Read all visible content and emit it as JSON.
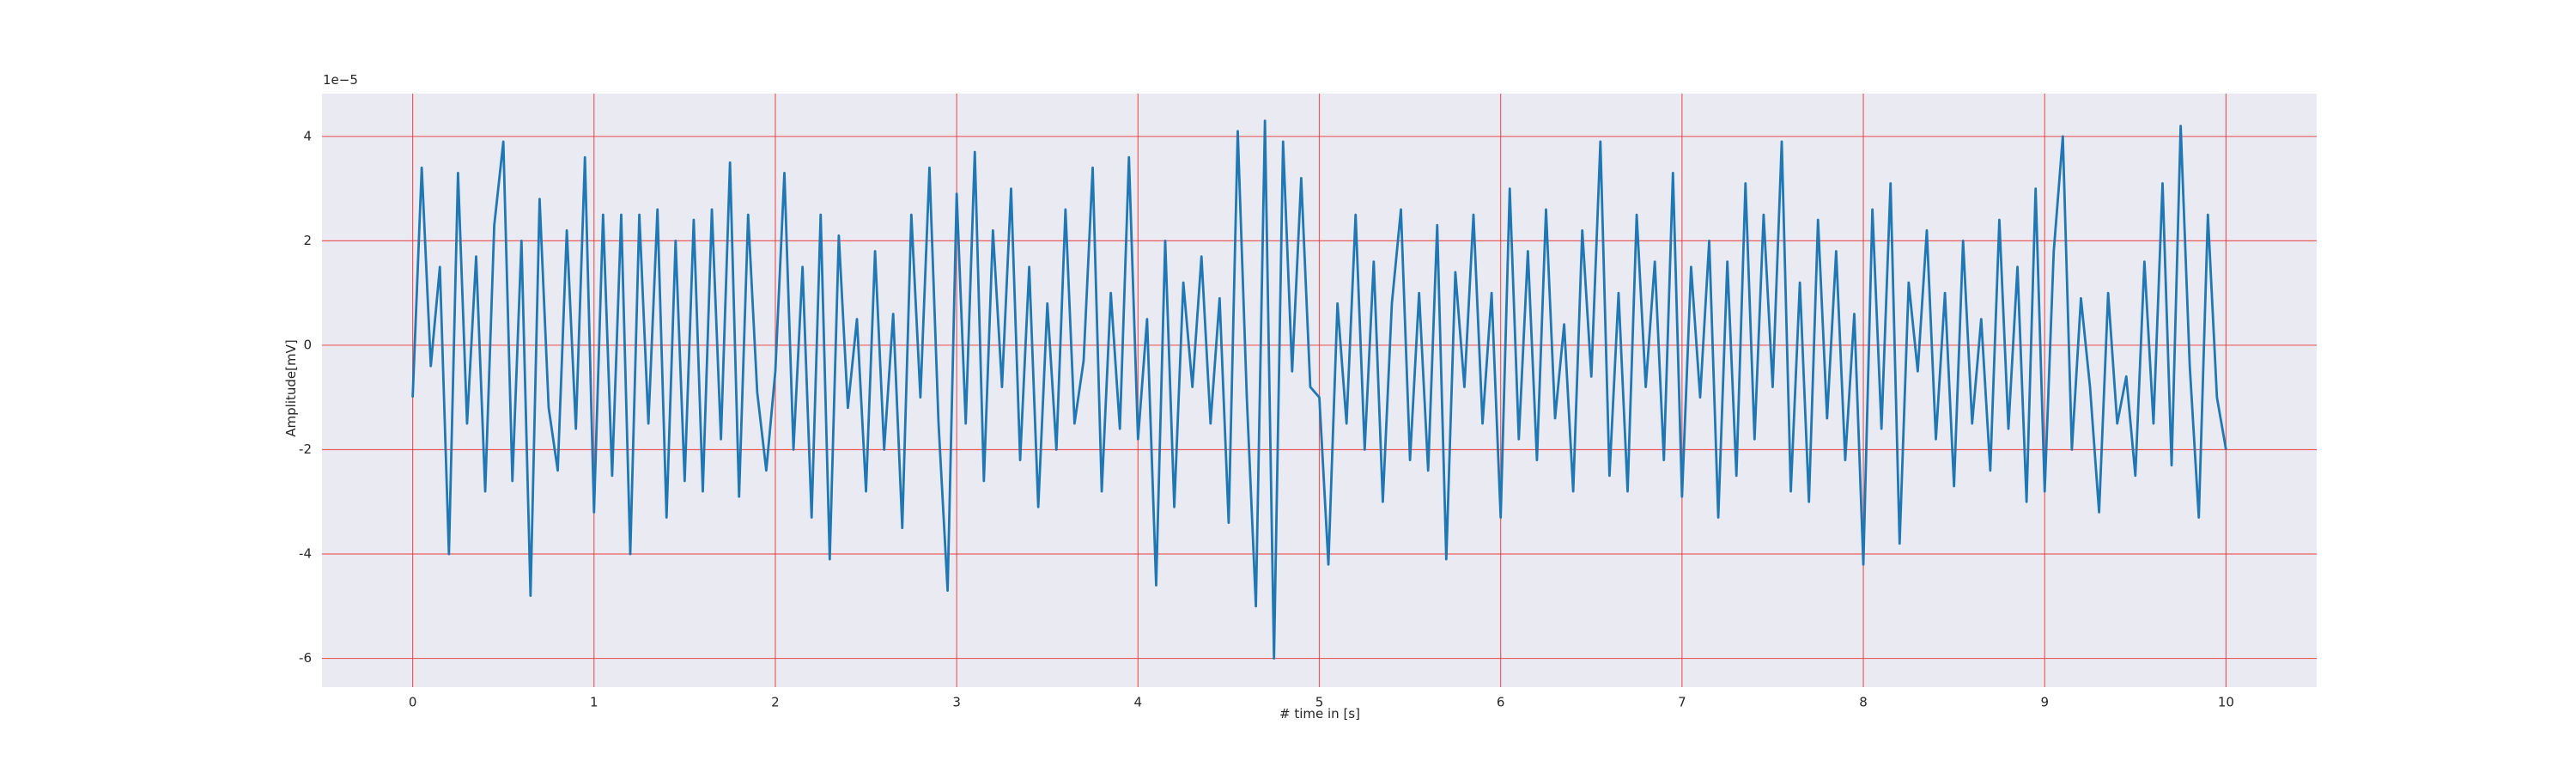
{
  "chart_data": {
    "type": "line",
    "x_label": "# time in [s]",
    "y_label": "Amplitude[mV]",
    "y_offset_text": "1e−5",
    "color": "#1f77b4",
    "grid": true,
    "grid_color": "#e8393a",
    "background": "#eaeaf2",
    "xlim": [
      -0.5,
      10.5
    ],
    "ylim": [
      -6.55,
      4.82
    ],
    "xticks": [
      0,
      1,
      2,
      3,
      4,
      5,
      6,
      7,
      8,
      9,
      10
    ],
    "yticks": [
      -6,
      -4,
      -2,
      0,
      2,
      4
    ],
    "x": [
      0.0,
      0.05,
      0.1,
      0.15,
      0.2,
      0.25,
      0.3,
      0.35,
      0.4,
      0.45,
      0.5,
      0.55,
      0.6,
      0.65,
      0.7,
      0.75,
      0.8,
      0.85,
      0.9,
      0.95,
      1.0,
      1.05,
      1.1,
      1.15,
      1.2,
      1.25,
      1.3,
      1.35,
      1.4,
      1.45,
      1.5,
      1.55,
      1.6,
      1.65,
      1.7,
      1.75,
      1.8,
      1.85,
      1.9,
      1.95,
      2.0,
      2.05,
      2.1,
      2.15,
      2.2,
      2.25,
      2.3,
      2.35,
      2.4,
      2.45,
      2.5,
      2.55,
      2.6,
      2.65,
      2.7,
      2.75,
      2.8,
      2.85,
      2.9,
      2.95,
      3.0,
      3.05,
      3.1,
      3.15,
      3.2,
      3.25,
      3.3,
      3.35,
      3.4,
      3.45,
      3.5,
      3.55,
      3.6,
      3.65,
      3.7,
      3.75,
      3.8,
      3.85,
      3.9,
      3.95,
      4.0,
      4.05,
      4.1,
      4.15,
      4.2,
      4.25,
      4.3,
      4.35,
      4.4,
      4.45,
      4.5,
      4.55,
      4.6,
      4.65,
      4.7,
      4.75,
      4.8,
      4.85,
      4.9,
      4.95,
      5.0,
      5.05,
      5.1,
      5.15,
      5.2,
      5.25,
      5.3,
      5.35,
      5.4,
      5.45,
      5.5,
      5.55,
      5.6,
      5.65,
      5.7,
      5.75,
      5.8,
      5.85,
      5.9,
      5.95,
      6.0,
      6.05,
      6.1,
      6.15,
      6.2,
      6.25,
      6.3,
      6.35,
      6.4,
      6.45,
      6.5,
      6.55,
      6.6,
      6.65,
      6.7,
      6.75,
      6.8,
      6.85,
      6.9,
      6.95,
      7.0,
      7.05,
      7.1,
      7.15,
      7.2,
      7.25,
      7.3,
      7.35,
      7.4,
      7.45,
      7.5,
      7.55,
      7.6,
      7.65,
      7.7,
      7.75,
      7.8,
      7.85,
      7.9,
      7.95,
      8.0,
      8.05,
      8.1,
      8.15,
      8.2,
      8.25,
      8.3,
      8.35,
      8.4,
      8.45,
      8.5,
      8.55,
      8.6,
      8.65,
      8.7,
      8.75,
      8.8,
      8.85,
      8.9,
      8.95,
      9.0,
      9.05,
      9.1,
      9.15,
      9.2,
      9.25,
      9.3,
      9.35,
      9.4,
      9.45,
      9.5,
      9.55,
      9.6,
      9.65,
      9.7,
      9.75,
      9.8,
      9.85,
      9.9,
      9.95,
      10.0
    ],
    "values": [
      -1.0,
      3.4,
      -0.4,
      1.5,
      -4.0,
      3.3,
      -1.5,
      1.7,
      -2.8,
      2.3,
      3.9,
      -2.6,
      2.0,
      -4.8,
      2.8,
      -1.2,
      -2.4,
      2.2,
      -1.6,
      3.6,
      -3.2,
      2.5,
      -2.5,
      2.5,
      -4.0,
      2.5,
      -1.5,
      2.6,
      -3.3,
      2.0,
      -2.6,
      2.4,
      -2.8,
      2.6,
      -1.8,
      3.5,
      -2.9,
      2.5,
      -0.9,
      -2.4,
      -0.5,
      3.3,
      -2.0,
      1.5,
      -3.3,
      2.5,
      -4.1,
      2.1,
      -1.2,
      0.5,
      -2.8,
      1.8,
      -2.0,
      0.6,
      -3.5,
      2.5,
      -1.0,
      3.4,
      -1.5,
      -4.7,
      2.9,
      -1.5,
      3.7,
      -2.6,
      2.2,
      -0.8,
      3.0,
      -2.2,
      1.5,
      -3.1,
      0.8,
      -2.0,
      2.6,
      -1.5,
      -0.3,
      3.4,
      -2.8,
      1.0,
      -1.6,
      3.6,
      -1.8,
      0.5,
      -4.6,
      2.0,
      -3.1,
      1.2,
      -0.8,
      1.7,
      -1.5,
      0.9,
      -3.4,
      4.1,
      -1.0,
      -5.0,
      4.3,
      -6.0,
      3.9,
      -0.5,
      3.2,
      -0.8,
      -1.0,
      -4.2,
      0.8,
      -1.5,
      2.5,
      -2.0,
      1.6,
      -3.0,
      0.8,
      2.6,
      -2.2,
      1.0,
      -2.4,
      2.3,
      -4.1,
      1.4,
      -0.8,
      2.5,
      -1.5,
      1.0,
      -3.3,
      3.0,
      -1.8,
      1.8,
      -2.2,
      2.6,
      -1.4,
      0.4,
      -2.8,
      2.2,
      -0.6,
      3.9,
      -2.5,
      1.0,
      -2.8,
      2.5,
      -0.8,
      1.6,
      -2.2,
      3.3,
      -2.9,
      1.5,
      -1.0,
      2.0,
      -3.3,
      1.6,
      -2.5,
      3.1,
      -1.8,
      2.5,
      -0.8,
      3.9,
      -2.8,
      1.2,
      -3.0,
      2.4,
      -1.4,
      1.8,
      -2.2,
      0.6,
      -4.2,
      2.6,
      -1.6,
      3.1,
      -3.8,
      1.2,
      -0.5,
      2.2,
      -1.8,
      1.0,
      -2.7,
      2.0,
      -1.5,
      0.5,
      -2.4,
      2.4,
      -1.6,
      1.5,
      -3.0,
      3.0,
      -2.8,
      1.8,
      4.0,
      -2.0,
      0.9,
      -0.8,
      -3.2,
      1.0,
      -1.5,
      -0.6,
      -2.5,
      1.6,
      -1.5,
      3.1,
      -2.3,
      4.2,
      -0.4,
      -3.3,
      2.5,
      -1.0,
      -2.0
    ]
  }
}
